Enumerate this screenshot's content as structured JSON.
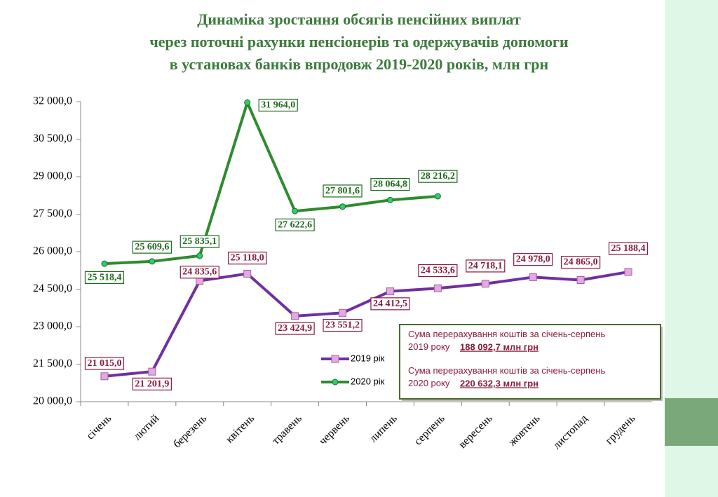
{
  "chart_data": {
    "type": "line",
    "title": [
      "Динаміка зростання обсягів пенсійних виплат",
      "через поточні рахунки пенсіонерів та одержувачів допомоги",
      "в установах банків впродовж 2019-2020 років, млн грн"
    ],
    "categories": [
      "січень",
      "лютий",
      "березень",
      "квітень",
      "травень",
      "червень",
      "липень",
      "серпень",
      "вересень",
      "жовтень",
      "листопад",
      "грудень"
    ],
    "series": [
      {
        "name": "2019 рік",
        "color": "#7030a0",
        "marker_color": "#e8a6e6",
        "values": [
          21015.0,
          21201.9,
          24835.6,
          25118.0,
          23424.9,
          23551.2,
          24412.5,
          24533.6,
          24718.1,
          24978.0,
          24865.0,
          25188.4
        ],
        "value_labels": [
          "21 015,0",
          "21 201,9",
          "24 835,6",
          "25 118,0",
          "23 424,9",
          "23 551,2",
          "24 412,5",
          "24 533,6",
          "24 718,1",
          "24 978,0",
          "24 865,0",
          "25 188,4"
        ]
      },
      {
        "name": "2020 рік",
        "color": "#2e8b2e",
        "marker_color": "#2ecc71",
        "values": [
          25518.4,
          25609.6,
          25835.1,
          31964.0,
          27622.6,
          27801.6,
          28064.8,
          28216.2,
          null,
          null,
          null,
          null
        ],
        "value_labels": [
          "25 518,4",
          "25 609,6",
          "25 835,1",
          "31 964,0",
          "27 622,6",
          "27 801,6",
          "28 064,8",
          "28 216,2",
          null,
          null,
          null,
          null
        ]
      }
    ],
    "ylim": [
      20000,
      32000
    ],
    "yticks": [
      {
        "value": 20000,
        "label": "20 000,0"
      },
      {
        "value": 21500,
        "label": "21 500,0"
      },
      {
        "value": 23000,
        "label": "23 000,0"
      },
      {
        "value": 24500,
        "label": "24 500,0"
      },
      {
        "value": 26000,
        "label": "26 000,0"
      },
      {
        "value": 27500,
        "label": "27 500,0"
      },
      {
        "value": 29000,
        "label": "29 000,0"
      },
      {
        "value": 30500,
        "label": "30 500,0"
      },
      {
        "value": 32000,
        "label": "32 000,0"
      }
    ],
    "grid": false,
    "annotations": [
      {
        "text": "Сума перерахування коштів  за січень-серпень 2019 року",
        "amount": "188 092,7 млн грн"
      },
      {
        "text": "Сума перерахування коштів  за січень-серпень 2020 року",
        "amount": "220 632,3 млн грн"
      }
    ]
  }
}
